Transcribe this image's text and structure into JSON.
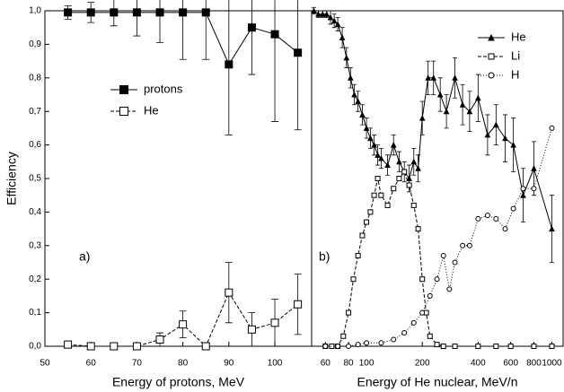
{
  "chart_data": [
    {
      "type": "line",
      "annotation": "a)",
      "xlabel": "Energy of protons, MeV",
      "ylabel": "Efficiency",
      "xlim": [
        50,
        108
      ],
      "xticks": [
        50,
        60,
        70,
        80,
        90,
        100
      ],
      "ylim": [
        0,
        1
      ],
      "yticks": [
        {
          "value": 0,
          "label": "0,0"
        },
        {
          "value": 0.1,
          "label": "0,1"
        },
        {
          "value": 0.2,
          "label": "0,2"
        },
        {
          "value": 0.3,
          "label": "0,3"
        },
        {
          "value": 0.4,
          "label": "0,4"
        },
        {
          "value": 0.5,
          "label": "0,5"
        },
        {
          "value": 0.6,
          "label": "0,6"
        },
        {
          "value": 0.7,
          "label": "0,7"
        },
        {
          "value": 0.8,
          "label": "0,8"
        },
        {
          "value": 0.9,
          "label": "0,9"
        },
        {
          "value": 1,
          "label": "1,0"
        }
      ],
      "legend": "upper-left",
      "series": [
        {
          "name": "protons",
          "color": "#000000",
          "marker": "filled-square",
          "dash": "solid",
          "x": [
            55,
            60,
            65,
            70,
            75,
            80,
            85,
            90,
            95,
            100,
            105
          ],
          "values": [
            0.995,
            0.995,
            0.995,
            0.995,
            0.995,
            0.995,
            0.995,
            0.84,
            0.95,
            0.93,
            0.875
          ],
          "errors": [
            0.02,
            0.03,
            0.04,
            0.07,
            0.09,
            0.14,
            0.14,
            0.21,
            0.14,
            0.26,
            0.23
          ]
        },
        {
          "name": "He",
          "color": "#000000",
          "marker": "open-square",
          "dash": "dashed",
          "x": [
            55,
            60,
            65,
            70,
            75,
            80,
            85,
            90,
            95,
            100,
            105
          ],
          "values": [
            0.005,
            0,
            0,
            0,
            0.02,
            0.065,
            0,
            0.16,
            0.05,
            0.07,
            0.125
          ],
          "errors": [
            0,
            0,
            0,
            0,
            0.02,
            0.04,
            0,
            0.09,
            0.05,
            0.07,
            0.09
          ]
        }
      ]
    },
    {
      "type": "line",
      "annotation": "b)",
      "xlabel": "Energy of He nuclear, MeV/n",
      "xscale": "log",
      "xlim": [
        50.6,
        1150
      ],
      "xticks": [
        60,
        80,
        100,
        200,
        400,
        600,
        800,
        1000
      ],
      "ylim": [
        0,
        1
      ],
      "legend": "upper-right",
      "series": [
        {
          "name": "He",
          "color": "#000000",
          "marker": "filled-triangle",
          "dash": "solid",
          "x": [
            52,
            55,
            58,
            61,
            64,
            67,
            70,
            74,
            78,
            82,
            86,
            90,
            95,
            100,
            105,
            110,
            115,
            120,
            130,
            140,
            150,
            160,
            170,
            180,
            190,
            200,
            215,
            230,
            250,
            270,
            300,
            330,
            360,
            400,
            450,
            500,
            560,
            620,
            700,
            800,
            1000
          ],
          "values": [
            1,
            0.99,
            0.99,
            0.99,
            0.98,
            0.97,
            0.96,
            0.92,
            0.86,
            0.8,
            0.75,
            0.73,
            0.69,
            0.65,
            0.62,
            0.6,
            0.57,
            0.56,
            0.54,
            0.6,
            0.55,
            0.52,
            0.5,
            0.55,
            0.53,
            0.68,
            0.8,
            0.8,
            0.75,
            0.7,
            0.8,
            0.72,
            0.7,
            0.74,
            0.63,
            0.66,
            0.62,
            0.6,
            0.45,
            0.53,
            0.35
          ],
          "errors": [
            0.01,
            0.01,
            0.01,
            0.01,
            0.02,
            0.02,
            0.02,
            0.03,
            0.03,
            0.03,
            0.03,
            0.03,
            0.03,
            0.03,
            0.03,
            0.03,
            0.03,
            0.03,
            0.03,
            0.03,
            0.03,
            0.03,
            0.04,
            0.04,
            0.04,
            0.05,
            0.05,
            0.05,
            0.05,
            0.05,
            0.06,
            0.06,
            0.06,
            0.07,
            0.06,
            0.06,
            0.07,
            0.08,
            0.08,
            0.08,
            0.1
          ]
        },
        {
          "name": "Li",
          "color": "#000000",
          "marker": "open-square",
          "dash": "dashed",
          "x": [
            60,
            65,
            70,
            75,
            80,
            85,
            90,
            95,
            100,
            105,
            110,
            115,
            120,
            130,
            140,
            150,
            160,
            170,
            180,
            190,
            200,
            210,
            220,
            240,
            260,
            300,
            400,
            500,
            600,
            800,
            1000
          ],
          "values": [
            0,
            0,
            0,
            0.03,
            0.1,
            0.2,
            0.27,
            0.33,
            0.37,
            0.4,
            0.45,
            0.5,
            0.45,
            0.42,
            0.47,
            0.5,
            0.52,
            0.48,
            0.42,
            0.35,
            0.2,
            0.1,
            0.03,
            0.005,
            0,
            0,
            0,
            0,
            0,
            0,
            0
          ]
        },
        {
          "name": "H",
          "color": "#000000",
          "marker": "open-circle",
          "dash": "dotted",
          "x": [
            60,
            70,
            80,
            90,
            100,
            120,
            140,
            160,
            180,
            200,
            220,
            240,
            260,
            280,
            300,
            330,
            360,
            400,
            450,
            500,
            560,
            620,
            700,
            800,
            1000
          ],
          "values": [
            0,
            0,
            0,
            0.005,
            0.01,
            0.01,
            0.02,
            0.04,
            0.07,
            0.1,
            0.15,
            0.2,
            0.27,
            0.17,
            0.25,
            0.3,
            0.3,
            0.38,
            0.39,
            0.38,
            0.35,
            0.41,
            0.47,
            0.47,
            0.65
          ]
        }
      ]
    }
  ]
}
